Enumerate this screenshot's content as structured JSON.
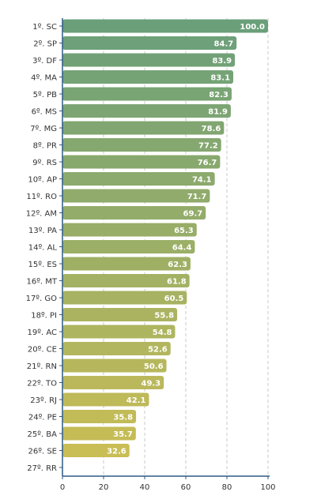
{
  "chart_data": {
    "type": "bar",
    "orientation": "horizontal",
    "title": "",
    "xlabel": "",
    "ylabel": "",
    "categories": [
      "1º. SC",
      "2º. SP",
      "3º. DF",
      "4º. MA",
      "5º. PB",
      "6º. MS",
      "7º. MG",
      "8º. PR",
      "9º. RS",
      "10º. AP",
      "11º. RO",
      "12º. AM",
      "13º. PA",
      "14º. AL",
      "15º. ES",
      "16º. MT",
      "17º. GO",
      "18º. PI",
      "19º. AC",
      "20º. CE",
      "21º. RN",
      "22º. TO",
      "23º. RJ",
      "24º. PE",
      "25º. BA",
      "26º. SE",
      "27º. RR"
    ],
    "values": [
      100.0,
      84.7,
      83.9,
      83.1,
      82.3,
      81.9,
      78.6,
      77.2,
      76.7,
      74.1,
      71.7,
      69.7,
      65.3,
      64.4,
      62.3,
      61.8,
      60.5,
      55.8,
      54.8,
      52.6,
      50.6,
      49.3,
      42.1,
      35.8,
      35.7,
      32.6,
      null
    ],
    "value_labels": [
      "100.0",
      "84.7",
      "83.9",
      "83.1",
      "82.3",
      "81.9",
      "78.6",
      "77.2",
      "76.7",
      "74.1",
      "71.7",
      "69.7",
      "65.3",
      "64.4",
      "62.3",
      "61.8",
      "60.5",
      "55.8",
      "54.8",
      "52.6",
      "50.6",
      "49.3",
      "42.1",
      "35.8",
      "35.7",
      "32.6",
      ""
    ],
    "xlim": [
      0,
      100
    ],
    "xticks": [
      0,
      20,
      40,
      60,
      80,
      100
    ],
    "xtick_labels": [
      "0",
      "20",
      "40",
      "60",
      "80",
      "100"
    ],
    "grid": true,
    "legend": "none",
    "colors": {
      "top": "#6a9f7a",
      "bottom": "#c9bd55",
      "axis": "#2f5a85",
      "grid": "#c8c8c8",
      "label_text": "#333333",
      "value_text": "#ffffff"
    }
  }
}
